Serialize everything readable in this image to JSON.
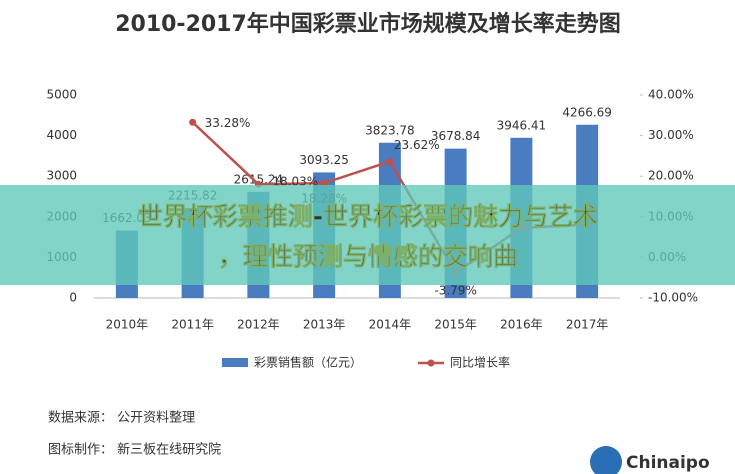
{
  "chart_data": {
    "type": "bar-line",
    "title": "2010-2017年中国彩票业市场规模及增长率走势图",
    "categories": [
      "2010年",
      "2011年",
      "2012年",
      "2013年",
      "2014年",
      "2015年",
      "2016年",
      "2017年"
    ],
    "series": [
      {
        "name": "彩票销售额（亿元）",
        "type": "bar",
        "color": "#4a7cc0",
        "values": [
          1662.03,
          2215.82,
          2615.24,
          3093.25,
          3823.78,
          3678.84,
          3946.41,
          4266.69
        ]
      },
      {
        "name": "同比增长率",
        "type": "line",
        "axis": "y2",
        "color": "#c0504d",
        "values": [
          null,
          33.28,
          18.03,
          18.28,
          23.62,
          -3.79,
          7.27,
          8.11
        ],
        "value_labels": [
          null,
          "33.28%",
          "18.03%",
          "18.28%",
          "23.62%",
          "-3.79%",
          null,
          null
        ]
      }
    ],
    "ylim": [
      0,
      5000
    ],
    "yticks": [
      0,
      1000,
      2000,
      3000,
      4000,
      5000
    ],
    "y2lim": [
      -10,
      40
    ],
    "y2ticks": [
      {
        "value": -10,
        "label": "-10.00%"
      },
      {
        "value": 0,
        "label": "0.00%"
      },
      {
        "value": 10,
        "label": "10.00%"
      },
      {
        "value": 20,
        "label": "20.00%"
      },
      {
        "value": 30,
        "label": "30.00%"
      },
      {
        "value": 40,
        "label": "40.00%"
      }
    ],
    "grid": false,
    "legend": "bottom"
  },
  "overlay": {
    "lines": [
      "世界杯彩票推测-世界杯彩票的魅力与艺术",
      "，理性预测与情感的交响曲"
    ]
  },
  "footer": {
    "source": "数据来源：  公开资料整理",
    "maker": "图标制作：  新三板在线研究院",
    "logo": "Chinaipo"
  }
}
